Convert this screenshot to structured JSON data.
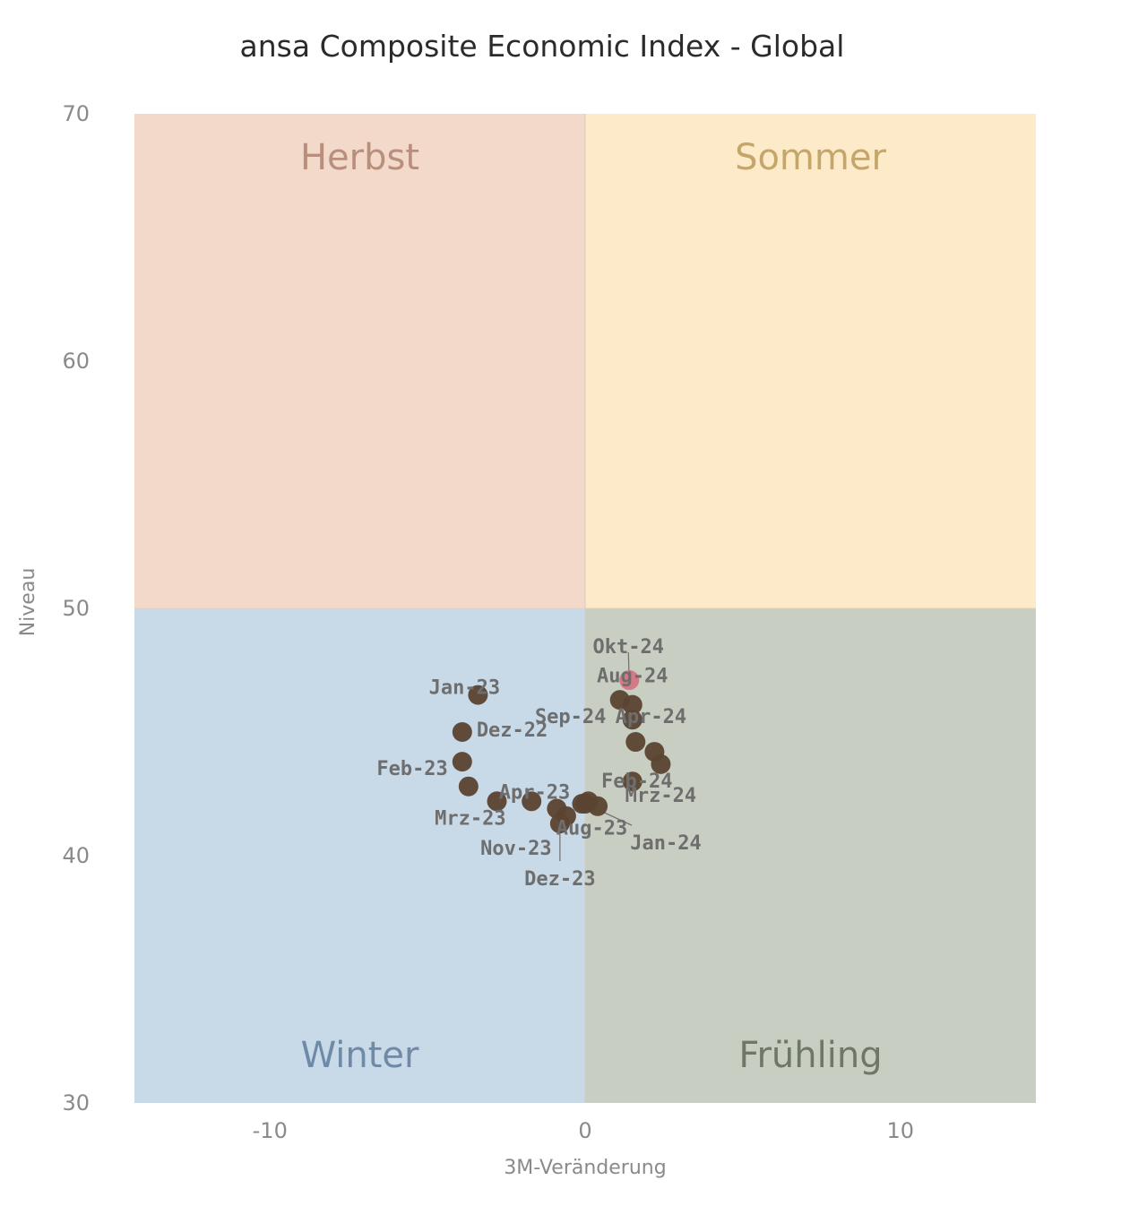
{
  "chart_data": {
    "type": "scatter",
    "title": "ansa Composite Economic Index - Global",
    "xlabel": "3M-Veränderung",
    "ylabel": "Niveau",
    "xlim": [
      -14.3,
      14.3
    ],
    "ylim": [
      30,
      70
    ],
    "x_ticks": [
      -10,
      0,
      10
    ],
    "y_ticks": [
      30,
      40,
      50,
      60,
      70
    ],
    "x_tick_labels": [
      "-10",
      "0",
      "10"
    ],
    "y_tick_labels": [
      "30",
      "40",
      "50",
      "60",
      "70"
    ],
    "grid": false,
    "quadrant_split": {
      "x": 0,
      "y": 50
    },
    "quadrants": [
      {
        "name": "Herbst",
        "x_range": [
          -14.3,
          0
        ],
        "y_range": [
          50,
          70
        ],
        "fill": "#f3d9ca",
        "text_color": "#b88f7c"
      },
      {
        "name": "Sommer",
        "x_range": [
          0,
          14.3
        ],
        "y_range": [
          50,
          70
        ],
        "fill": "#fdeac8",
        "text_color": "#c4a56a"
      },
      {
        "name": "Winter",
        "x_range": [
          -14.3,
          0
        ],
        "y_range": [
          30,
          50
        ],
        "fill": "#c8d9e8",
        "text_color": "#6f8aa6"
      },
      {
        "name": "Frühling",
        "x_range": [
          0,
          14.3
        ],
        "y_range": [
          30,
          50
        ],
        "fill": "#c9cec2",
        "text_color": "#6e7868"
      }
    ],
    "marker_color": "#5b4332",
    "highlight_color": "#d56b7b",
    "points": [
      {
        "label": "Dez-22",
        "x": -3.9,
        "y": 45.0
      },
      {
        "label": "Jan-23",
        "x": -3.4,
        "y": 46.5
      },
      {
        "label": "Feb-23",
        "x": -3.9,
        "y": 43.8
      },
      {
        "label": "Mrz-23",
        "x": -3.7,
        "y": 42.8
      },
      {
        "label": "Apr-23",
        "x": -2.8,
        "y": 42.2
      },
      {
        "label": "",
        "x": -1.7,
        "y": 42.2
      },
      {
        "label": "",
        "x": -0.9,
        "y": 41.9
      },
      {
        "label": "Aug-23",
        "x": 0.1,
        "y": 42.2
      },
      {
        "label": "",
        "x": 0.4,
        "y": 42.0
      },
      {
        "label": "",
        "x": -0.1,
        "y": 42.1
      },
      {
        "label": "Nov-23",
        "x": -0.6,
        "y": 41.6
      },
      {
        "label": "Dez-23",
        "x": -0.8,
        "y": 41.3
      },
      {
        "label": "Jan-24",
        "x": 0.0,
        "y": 42.1
      },
      {
        "label": "Feb-24",
        "x": 1.5,
        "y": 43.0
      },
      {
        "label": "Mrz-24",
        "x": 2.4,
        "y": 43.7
      },
      {
        "label": "Apr-24",
        "x": 2.2,
        "y": 44.2
      },
      {
        "label": "",
        "x": 1.6,
        "y": 44.6
      },
      {
        "label": "",
        "x": 1.5,
        "y": 45.5
      },
      {
        "label": "Aug-24",
        "x": 1.5,
        "y": 46.1
      },
      {
        "label": "Sep-24",
        "x": 1.1,
        "y": 46.3
      },
      {
        "label": "Okt-24",
        "x": 1.4,
        "y": 47.1,
        "highlight": true
      }
    ]
  }
}
